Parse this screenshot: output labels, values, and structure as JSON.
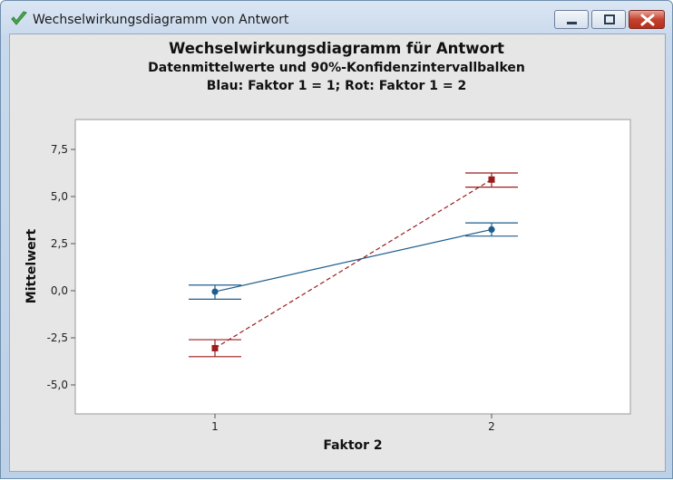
{
  "window": {
    "title": "Wechselwirkungsdiagramm von Antwort",
    "icon": "green-checkmark-icon",
    "controls": [
      "minimize-icon",
      "maximize-icon",
      "close-icon"
    ]
  },
  "chart_data": {
    "type": "line",
    "title": "Wechselwirkungsdiagramm für Antwort",
    "subtitle": "Datenmittelwerte und 90%-Konfidenzintervallbalken",
    "subtitle2": "Blau: Faktor 1 = 1; Rot: Faktor 1 = 2",
    "xlabel": "Faktor 2",
    "ylabel": "Mittelwert",
    "categories": [
      "1",
      "2"
    ],
    "y_ticks": [
      "-5,0",
      "-2,5",
      "0,0",
      "2,5",
      "5,0",
      "7,5"
    ],
    "ylim": [
      -6.5,
      9.0
    ],
    "grid": false,
    "series": [
      {
        "color": "#1f5e8c",
        "line_style": "solid",
        "marker": "circle",
        "values": [
          -0.05,
          3.25
        ],
        "ci_lower": [
          -0.45,
          2.9
        ],
        "ci_upper": [
          0.3,
          3.6
        ]
      },
      {
        "color": "#9b1c1c",
        "line_style": "dashed",
        "marker": "square",
        "values": [
          -3.05,
          5.9
        ],
        "ci_lower": [
          -3.5,
          5.5
        ],
        "ci_upper": [
          -2.6,
          6.25
        ]
      }
    ]
  }
}
